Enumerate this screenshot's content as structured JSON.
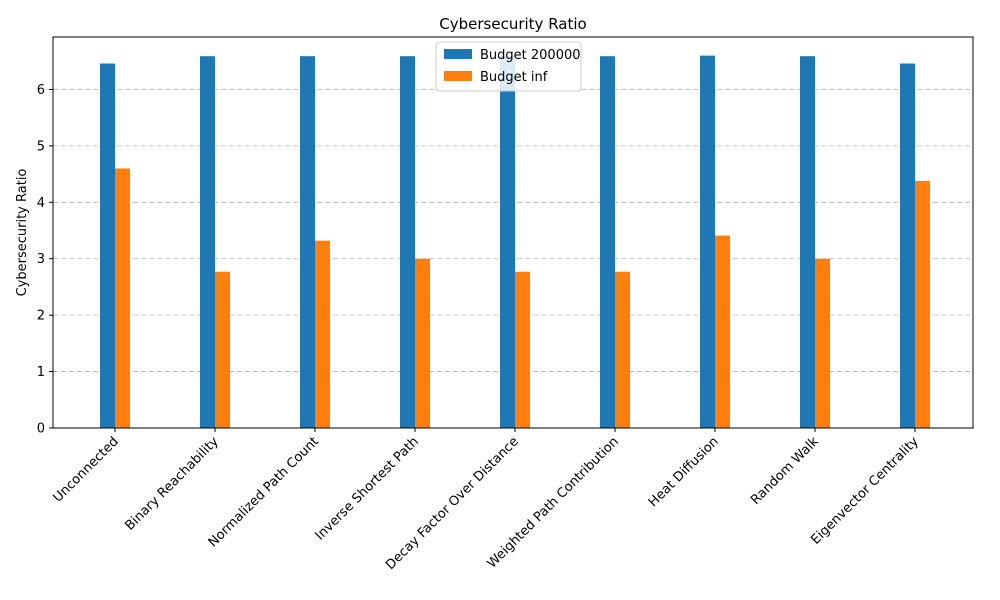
{
  "chart_data": {
    "type": "bar",
    "title": "Cybersecurity Ratio",
    "xlabel": "",
    "ylabel": "Cybersecurity Ratio",
    "ylim": [
      0,
      6.93
    ],
    "yticks": [
      0,
      1,
      2,
      3,
      4,
      5,
      6
    ],
    "grid": "y-dashed",
    "legend_position": "top-center",
    "categories": [
      "Unconnected",
      "Binary Reachability",
      "Normalized Path Count",
      "Inverse Shortest Path",
      "Decay Factor Over Distance",
      "Weighted Path Contribution",
      "Heat Diffusion",
      "Random Walk",
      "Eigenvector Centrality"
    ],
    "series": [
      {
        "name": "Budget 200000",
        "color": "#1f77b4",
        "values": [
          6.46,
          6.59,
          6.59,
          6.59,
          6.59,
          6.59,
          6.6,
          6.59,
          6.46
        ]
      },
      {
        "name": "Budget inf",
        "color": "#ff7f0e",
        "values": [
          4.6,
          2.77,
          3.32,
          3.0,
          2.77,
          2.77,
          3.41,
          3.0,
          4.38
        ]
      }
    ]
  }
}
